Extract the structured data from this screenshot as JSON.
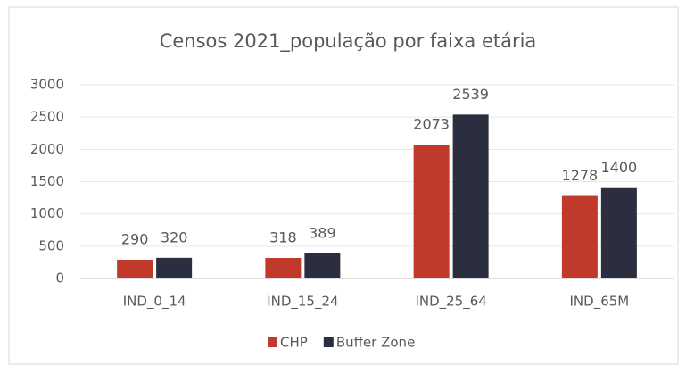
{
  "chart_data": {
    "type": "bar",
    "title": "Censos 2021_população por faixa etária",
    "categories": [
      "IND_0_14",
      "IND_15_24",
      "IND_25_64",
      "IND_65M"
    ],
    "series": [
      {
        "name": "CHP",
        "color": "#c0392b",
        "values": [
          290,
          318,
          2073,
          1278
        ]
      },
      {
        "name": "Buffer Zone",
        "color": "#2b2e3f",
        "values": [
          320,
          389,
          2539,
          1400
        ]
      }
    ],
    "ylim": [
      0,
      3000
    ],
    "yticks": [
      0,
      500,
      1000,
      1500,
      2000,
      2500,
      3000
    ],
    "grid": true,
    "legend": "bottom"
  }
}
